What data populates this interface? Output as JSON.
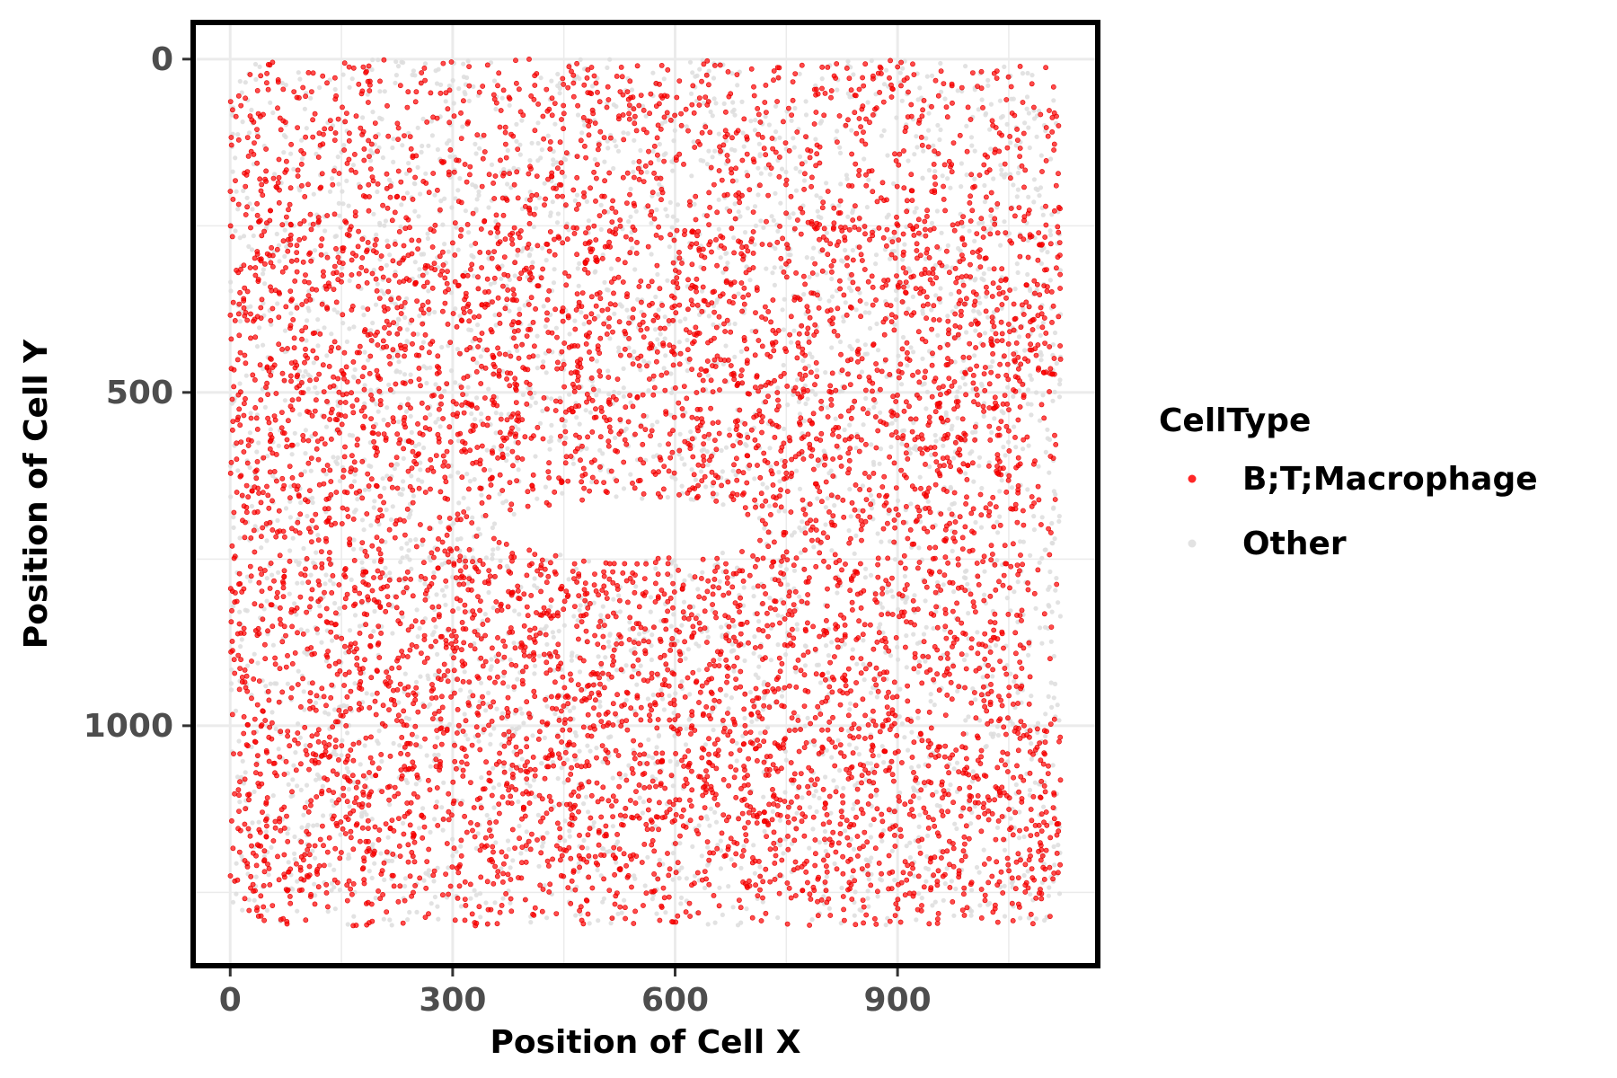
{
  "chart_data": {
    "type": "scatter",
    "title": "",
    "xlabel": "Position of Cell X",
    "ylabel": "Position of Cell Y",
    "xlim": [
      -50,
      1170
    ],
    "ylim": [
      -55,
      1360
    ],
    "y_reversed": true,
    "x_ticks": [
      0,
      300,
      600,
      900
    ],
    "y_ticks": [
      0,
      500,
      1000
    ],
    "grid": true,
    "legend": {
      "title": "CellType",
      "placement": "right",
      "entries": [
        {
          "name": "B;T;Macrophage",
          "color": "#ff0000"
        },
        {
          "name": "Other",
          "color": "#dddddd"
        }
      ]
    },
    "series": [
      {
        "name": "B;T;Macrophage",
        "color": "#ff0000",
        "distribution": {
          "x_range": [
            0,
            1120
          ],
          "y_range": [
            0,
            1300
          ],
          "approx_points": 14000,
          "dense_bands_y": [
            [
              250,
              700
            ],
            [
              750,
              1250
            ]
          ],
          "empty_region": {
            "x": [
              360,
              720
            ],
            "y": [
              660,
              750
            ]
          }
        }
      },
      {
        "name": "Other",
        "color": "#dddddd",
        "distribution": {
          "x_range": [
            0,
            1120
          ],
          "y_range": [
            0,
            1300
          ],
          "approx_points": 7000
        }
      }
    ]
  }
}
